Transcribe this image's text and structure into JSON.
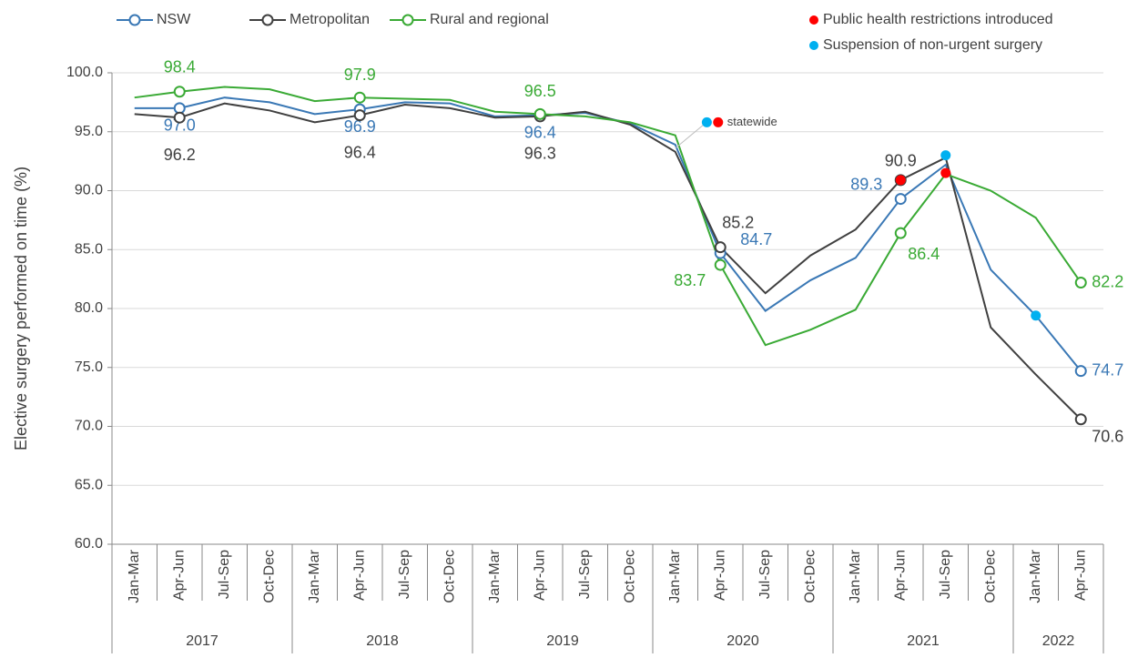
{
  "chart_data": {
    "type": "line",
    "y_label": "Elective surgery performed on time (%)",
    "ylim": [
      60,
      100
    ],
    "yticks": [
      {
        "value": 60,
        "label": "60.0"
      },
      {
        "value": 65,
        "label": "65.0"
      },
      {
        "value": 70,
        "label": "70.0"
      },
      {
        "value": 75,
        "label": "75.0"
      },
      {
        "value": 80,
        "label": "80.0"
      },
      {
        "value": 85,
        "label": "85.0"
      },
      {
        "value": 90,
        "label": "90.0"
      },
      {
        "value": 95,
        "label": "95.0"
      },
      {
        "value": 100,
        "label": "100.0"
      }
    ],
    "grid": true,
    "categories": [
      "Jan-Mar",
      "Apr-Jun",
      "Jul-Sep",
      "Oct-Dec",
      "Jan-Mar",
      "Apr-Jun",
      "Jul-Sep",
      "Oct-Dec",
      "Jan-Mar",
      "Apr-Jun",
      "Jul-Sep",
      "Oct-Dec",
      "Jan-Mar",
      "Apr-Jun",
      "Jul-Sep",
      "Oct-Dec",
      "Jan-Mar",
      "Apr-Jun",
      "Jul-Sep",
      "Oct-Dec",
      "Jan-Mar",
      "Apr-Jun"
    ],
    "years": [
      {
        "label": "2017",
        "span": 4
      },
      {
        "label": "2018",
        "span": 4
      },
      {
        "label": "2019",
        "span": 4
      },
      {
        "label": "2020",
        "span": 4
      },
      {
        "label": "2021",
        "span": 4
      },
      {
        "label": "2022",
        "span": 2
      }
    ],
    "series": [
      {
        "name": "NSW",
        "color": "#3a78b5",
        "values": [
          97.0,
          97.0,
          97.9,
          97.5,
          96.5,
          96.9,
          97.5,
          97.4,
          96.3,
          96.4,
          96.6,
          95.7,
          93.9,
          84.7,
          79.8,
          82.4,
          84.3,
          89.3,
          92.2,
          83.3,
          79.4,
          74.7
        ],
        "value_labels": [
          null,
          "97.0",
          null,
          null,
          null,
          "96.9",
          null,
          null,
          null,
          "96.4",
          null,
          null,
          null,
          "84.7",
          null,
          null,
          null,
          "89.3",
          null,
          null,
          null,
          "74.7"
        ]
      },
      {
        "name": "Metropolitan",
        "color": "#404040",
        "values": [
          96.5,
          96.2,
          97.4,
          96.8,
          95.8,
          96.4,
          97.3,
          97.0,
          96.2,
          96.3,
          96.7,
          95.6,
          93.3,
          85.2,
          81.3,
          84.5,
          86.7,
          90.9,
          92.8,
          78.4,
          74.4,
          70.6
        ],
        "value_labels": [
          null,
          "96.2",
          null,
          null,
          null,
          "96.4",
          null,
          null,
          null,
          "96.3",
          null,
          null,
          null,
          "85.2",
          null,
          null,
          null,
          "90.9",
          null,
          null,
          null,
          "70.6"
        ]
      },
      {
        "name": "Rural and regional",
        "color": "#3aaa35",
        "values": [
          97.9,
          98.4,
          98.8,
          98.6,
          97.6,
          97.9,
          97.8,
          97.7,
          96.7,
          96.5,
          96.3,
          95.8,
          94.7,
          83.7,
          76.9,
          78.2,
          79.9,
          86.4,
          91.4,
          90.0,
          87.7,
          82.2
        ],
        "value_labels": [
          null,
          "98.4",
          null,
          null,
          null,
          "97.9",
          null,
          null,
          null,
          "96.5",
          null,
          null,
          null,
          "83.7",
          null,
          null,
          null,
          "86.4",
          null,
          null,
          null,
          "82.2"
        ]
      }
    ],
    "events": [
      {
        "name": "Public health restrictions introduced",
        "color": "#ff0000",
        "points": [
          {
            "x": 12.95,
            "y": 95.8
          },
          {
            "x": 17,
            "y": 90.9
          },
          {
            "x": 18,
            "y": 91.5
          }
        ]
      },
      {
        "name": "Suspension of non-urgent surgery",
        "color": "#00b0f0",
        "points": [
          {
            "x": 12.7,
            "y": 95.8
          },
          {
            "x": 18,
            "y": 93.0
          },
          {
            "x": 20,
            "y": 79.4
          }
        ]
      }
    ],
    "annotation": "statewide"
  }
}
